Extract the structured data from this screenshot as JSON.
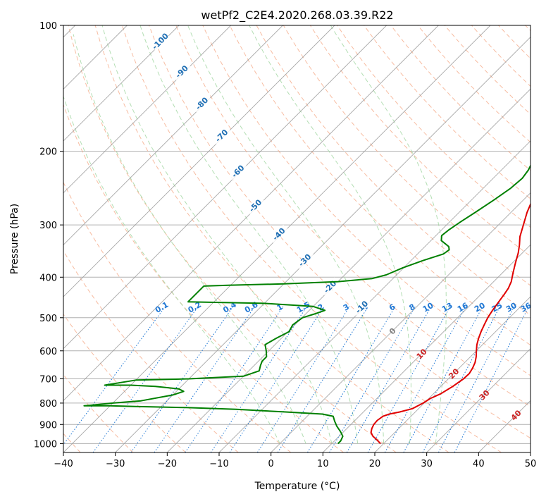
{
  "chart_data": {
    "type": "line",
    "title": "wetPf2_C2E4.2020.268.03.39.R22",
    "xlabel": "Temperature (°C)",
    "ylabel": "Pressure (hPa)",
    "xlim": [
      -40,
      50
    ],
    "ylim": [
      1050,
      100
    ],
    "y_scale": "log",
    "grid": true,
    "x_ticks": [
      "−40",
      "−30",
      "−20",
      "−10",
      "0",
      "10",
      "20",
      "30",
      "40",
      "50"
    ],
    "y_ticks": [
      {
        "p": 100,
        "label": "100"
      },
      {
        "p": 200,
        "label": "200"
      },
      {
        "p": 300,
        "label": "300"
      },
      {
        "p": 400,
        "label": "400"
      },
      {
        "p": 500,
        "label": "500"
      },
      {
        "p": 600,
        "label": "600"
      },
      {
        "p": 700,
        "label": "700"
      },
      {
        "p": 800,
        "label": "800"
      },
      {
        "p": 900,
        "label": "900"
      },
      {
        "p": 1000,
        "label": "1000"
      }
    ],
    "colors": {
      "temperature": "#e00000",
      "dewpoint": "#008000",
      "dry_adiabat": "#f4a582",
      "moist_adiabat": "#a6d8a6",
      "isotherm": "#999999",
      "mixing_ratio": "#1f77d4",
      "dry_adiabat_label": "#1f6fb4",
      "isotherm_label": "#cc2222"
    },
    "series": [
      {
        "key": "temperature",
        "points": [
          [
            19.4,
            1000
          ],
          [
            18.0,
            980
          ],
          [
            16.5,
            960
          ],
          [
            15.4,
            940
          ],
          [
            14.8,
            920
          ],
          [
            14.4,
            900
          ],
          [
            14.3,
            880
          ],
          [
            14.6,
            860
          ],
          [
            15.4,
            850
          ],
          [
            17.0,
            840
          ],
          [
            18.8,
            825
          ],
          [
            19.8,
            800
          ],
          [
            20.3,
            780
          ],
          [
            21.4,
            760
          ],
          [
            22.3,
            730
          ],
          [
            22.9,
            700
          ],
          [
            23.0,
            680
          ],
          [
            22.6,
            660
          ],
          [
            22.0,
            640
          ],
          [
            21.1,
            620
          ],
          [
            20.0,
            600
          ],
          [
            18.9,
            580
          ],
          [
            18.0,
            560
          ],
          [
            17.2,
            540
          ],
          [
            16.5,
            520
          ],
          [
            15.8,
            500
          ],
          [
            15.3,
            480
          ],
          [
            14.9,
            460
          ],
          [
            14.5,
            440
          ],
          [
            14.1,
            425
          ],
          [
            13.4,
            410
          ],
          [
            12.0,
            390
          ],
          [
            10.6,
            370
          ],
          [
            9.2,
            350
          ],
          [
            7.9,
            335
          ],
          [
            6.4,
            320
          ],
          [
            4.8,
            300
          ],
          [
            3.1,
            280
          ],
          [
            1.6,
            260
          ],
          [
            0.2,
            240
          ],
          [
            -0.4,
            225
          ],
          [
            -0.8,
            212
          ],
          [
            -0.8,
            200
          ],
          [
            -0.5,
            190
          ],
          [
            0.2,
            180
          ],
          [
            1.8,
            170
          ],
          [
            3.5,
            162
          ],
          [
            5.5,
            155
          ],
          [
            6.8,
            145
          ],
          [
            7.3,
            135
          ],
          [
            7.0,
            125
          ],
          [
            6.8,
            118
          ],
          [
            7.4,
            112
          ],
          [
            8.3,
            108
          ],
          [
            8.8,
            105
          ],
          [
            9.0,
            102
          ],
          [
            9.0,
            100
          ]
        ]
      },
      {
        "key": "dewpoint",
        "points": [
          [
            11.2,
            1000
          ],
          [
            11.2,
            985
          ],
          [
            10.7,
            960
          ],
          [
            9.3,
            935
          ],
          [
            7.7,
            910
          ],
          [
            6.3,
            885
          ],
          [
            5.0,
            860
          ],
          [
            2.5,
            850
          ],
          [
            -5.0,
            840
          ],
          [
            -15.0,
            828
          ],
          [
            -25.0,
            820
          ],
          [
            -35.0,
            815
          ],
          [
            -40.0,
            812
          ],
          [
            -45.0,
            812
          ],
          [
            -40.0,
            800
          ],
          [
            -35.0,
            790
          ],
          [
            -30.0,
            765
          ],
          [
            -28.6,
            750
          ],
          [
            -30.0,
            740
          ],
          [
            -35.0,
            730
          ],
          [
            -40.0,
            725
          ],
          [
            -45.0,
            725
          ],
          [
            -40.0,
            705
          ],
          [
            -30.0,
            700
          ],
          [
            -20.0,
            690
          ],
          [
            -18.0,
            670
          ],
          [
            -18.8,
            650
          ],
          [
            -19.3,
            635
          ],
          [
            -19.3,
            620
          ],
          [
            -20.5,
            600
          ],
          [
            -21.9,
            580
          ],
          [
            -21.0,
            560
          ],
          [
            -19.8,
            540
          ],
          [
            -20.4,
            520
          ],
          [
            -19.9,
            500
          ],
          [
            -18.0,
            488
          ],
          [
            -17.0,
            480
          ],
          [
            -20.0,
            470
          ],
          [
            -30.0,
            462
          ],
          [
            -45.0,
            458
          ],
          [
            -45.0,
            420
          ],
          [
            -40.0,
            418
          ],
          [
            -30.0,
            415
          ],
          [
            -20.0,
            410
          ],
          [
            -14.0,
            403
          ],
          [
            -12.0,
            395
          ],
          [
            -10.2,
            380
          ],
          [
            -7.7,
            365
          ],
          [
            -5.0,
            352
          ],
          [
            -4.7,
            344
          ],
          [
            -5.4,
            338
          ],
          [
            -8.0,
            327
          ],
          [
            -8.9,
            318
          ],
          [
            -8.6,
            308
          ],
          [
            -7.9,
            295
          ],
          [
            -6.9,
            280
          ],
          [
            -5.7,
            262
          ],
          [
            -4.7,
            245
          ],
          [
            -4.4,
            232
          ],
          [
            -4.8,
            222
          ],
          [
            -5.6,
            212
          ],
          [
            -6.5,
            202
          ],
          [
            -7.7,
            190
          ],
          [
            -8.8,
            180
          ],
          [
            -10.0,
            170
          ],
          [
            -10.7,
            162
          ],
          [
            -10.4,
            155
          ],
          [
            -9.3,
            147
          ],
          [
            -7.5,
            138
          ],
          [
            -6.5,
            130
          ],
          [
            -5.5,
            124
          ],
          [
            -4.3,
            119
          ],
          [
            -3.2,
            114
          ],
          [
            -2.5,
            110
          ],
          [
            -1.5,
            106
          ],
          [
            0.0,
            102
          ],
          [
            1.0,
            100
          ]
        ]
      }
    ],
    "background_lines": {
      "isotherms": [
        -150,
        -140,
        -130,
        -120,
        -110,
        -100,
        -90,
        -80,
        -70,
        -60,
        -50,
        -40,
        -30,
        -20,
        -10,
        0,
        10,
        20,
        30,
        40,
        50
      ],
      "dry_adiabats": [
        -40,
        -30,
        -20,
        -10,
        0,
        10,
        20,
        30,
        40,
        50,
        60,
        70,
        80,
        90,
        100,
        110,
        120,
        130,
        140,
        150,
        160,
        170,
        180,
        190
      ],
      "moist_adiabats": [
        0,
        5,
        10,
        15,
        20,
        25,
        30
      ],
      "mixing_ratios": [
        0.1,
        0.2,
        0.4,
        0.6,
        1,
        1.5,
        2,
        3,
        4,
        6,
        8,
        10,
        13,
        16,
        20,
        25,
        30,
        36
      ]
    },
    "annotations": {
      "dry_adiabat_labels": [
        {
          "text": "-100",
          "p": 110
        },
        {
          "text": "-90",
          "p": 130
        },
        {
          "text": "-80",
          "p": 155
        },
        {
          "text": "-70",
          "p": 185
        },
        {
          "text": "-60",
          "p": 225
        },
        {
          "text": "-50",
          "p": 272
        },
        {
          "text": "-40",
          "p": 318
        },
        {
          "text": "-30",
          "p": 367
        },
        {
          "text": "-20",
          "p": 425
        },
        {
          "text": "-10",
          "p": 475
        }
      ],
      "isotherm_labels": [
        {
          "text": "0",
          "p": 538
        },
        {
          "text": "10",
          "p": 610
        },
        {
          "text": "20",
          "p": 680
        },
        {
          "text": "30",
          "p": 765
        },
        {
          "text": "40",
          "p": 855
        }
      ],
      "mixing_ratio_labels": [
        "0.1",
        "0.2",
        "0.4",
        "0.6",
        "1",
        "1.5",
        "2",
        "3",
        "4",
        "6",
        "8",
        "10",
        "13",
        "16",
        "20",
        "25",
        "30",
        "36"
      ]
    }
  }
}
